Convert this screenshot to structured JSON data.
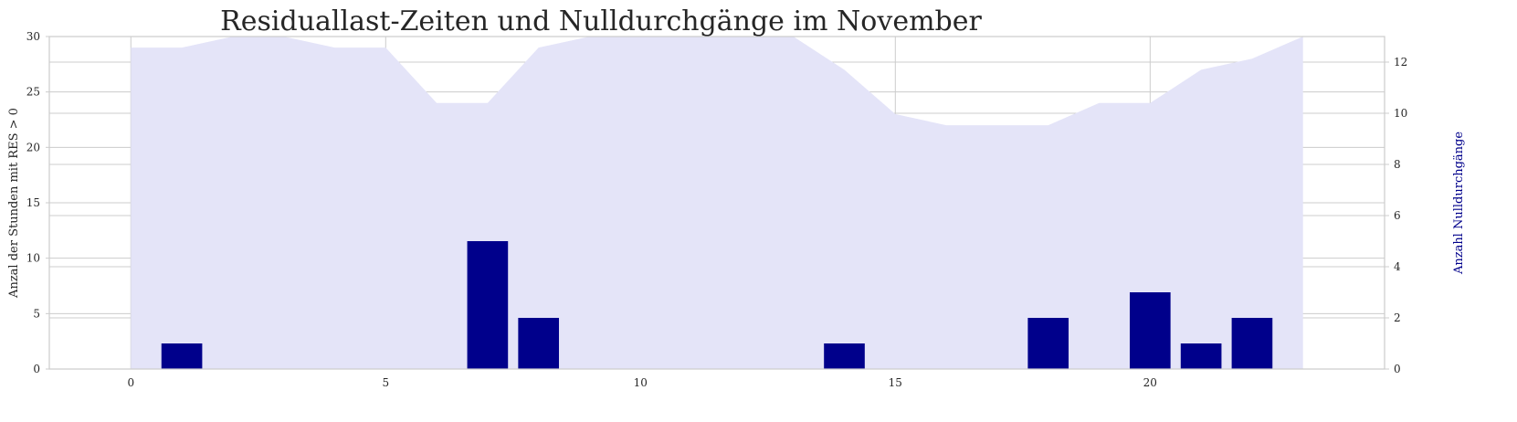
{
  "chart_data": {
    "type": "bar",
    "title": "Residuallast-Zeiten und Nulldurchgänge im November",
    "ylabel_left": "Anzal der Stunden mit RES > 0",
    "ylabel_right": "Anzahl Nulldurchgänge",
    "x": [
      0,
      1,
      2,
      3,
      4,
      5,
      6,
      7,
      8,
      9,
      10,
      11,
      12,
      13,
      14,
      15,
      16,
      17,
      18,
      19,
      20,
      21,
      22,
      23
    ],
    "xticks": [
      0,
      5,
      10,
      15,
      20
    ],
    "xlim": [
      -1.6,
      24.6
    ],
    "ylim_left": [
      0,
      30
    ],
    "yticks_left": [
      0,
      5,
      10,
      15,
      20,
      25,
      30
    ],
    "ylim_right": [
      0,
      13
    ],
    "yticks_right": [
      0,
      2,
      4,
      6,
      8,
      10,
      12
    ],
    "series": [
      {
        "name": "",
        "kind": "area",
        "axis": "left",
        "values": [
          29,
          29,
          30,
          30,
          29,
          29,
          24,
          24,
          29,
          30,
          30,
          30,
          30,
          30,
          27,
          23,
          22,
          22,
          22,
          24,
          24,
          27,
          28,
          30
        ]
      },
      {
        "name": "",
        "kind": "bar",
        "axis": "right",
        "values": [
          0,
          1,
          0,
          0,
          0,
          0,
          0,
          5,
          2,
          0,
          0,
          0,
          0,
          0,
          1,
          0,
          0,
          0,
          2,
          0,
          3,
          1,
          2,
          0
        ]
      }
    ],
    "colors": {
      "area": "#e4e4f8",
      "bar": "#00008b",
      "right_label": "#00008b"
    },
    "grid": true
  }
}
